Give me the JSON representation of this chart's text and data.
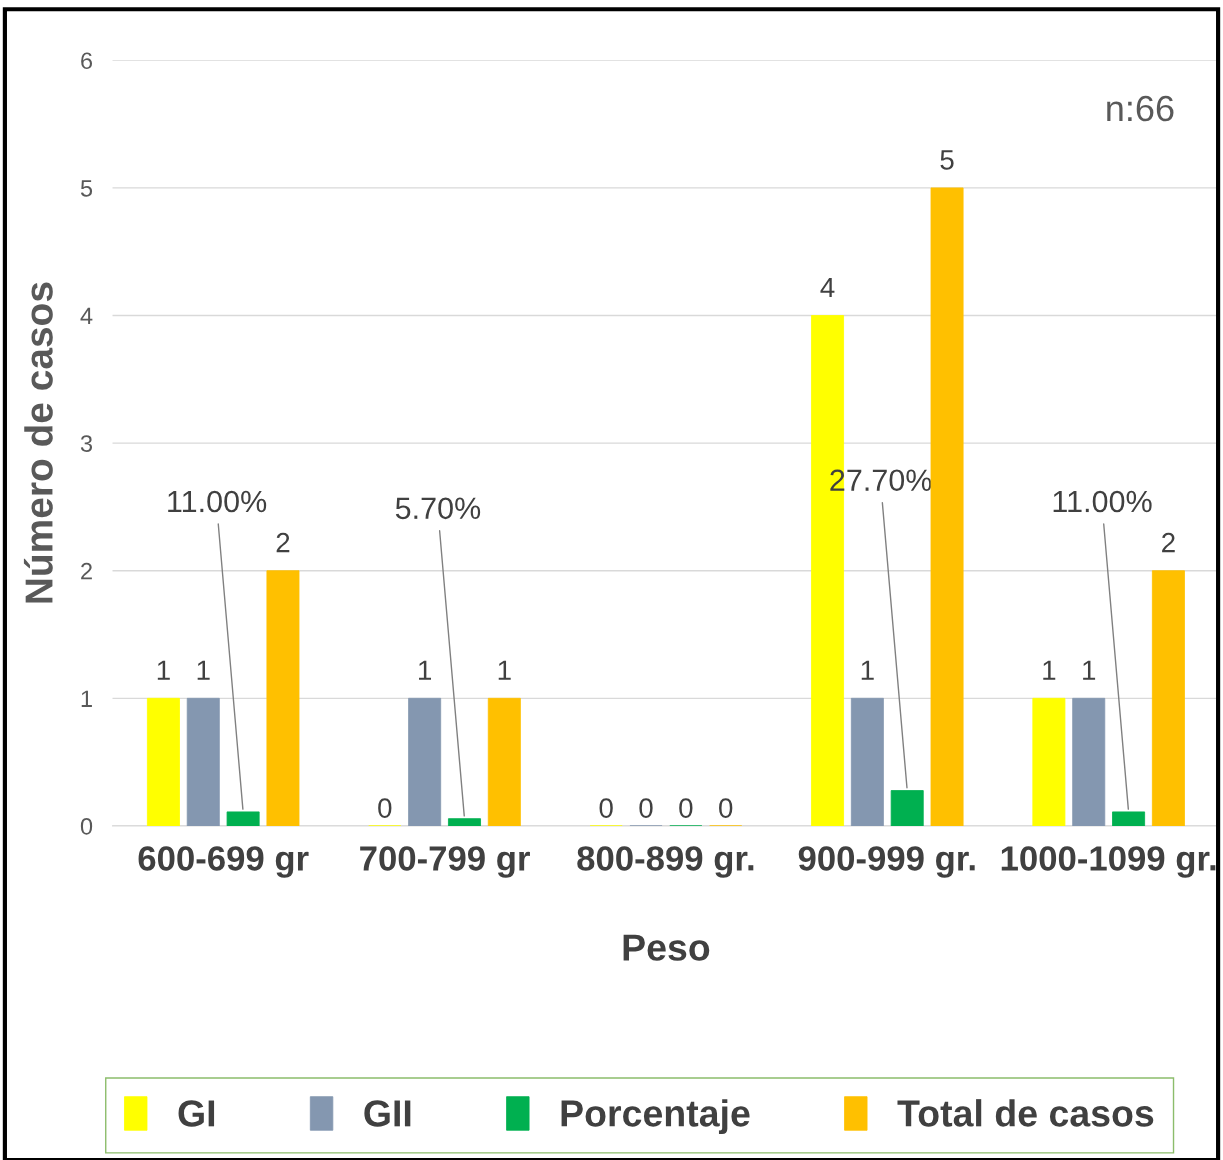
{
  "chart_data": {
    "type": "bar",
    "xlabel": "Peso",
    "ylabel": "Número de casos",
    "categories": [
      "600-699 gr",
      "700-799 gr",
      "800-899 gr.",
      "900-999 gr.",
      "1000-1099 gr."
    ],
    "series": [
      {
        "name": "GI",
        "color": "#ffff00",
        "values": [
          1,
          0,
          0,
          4,
          1
        ],
        "value_labels": [
          "1",
          "0",
          "0",
          "4",
          "1"
        ]
      },
      {
        "name": "GII",
        "color": "#8497b0",
        "values": [
          1,
          1,
          0,
          1,
          1
        ],
        "value_labels": [
          "1",
          "1",
          "0",
          "1",
          "1"
        ]
      },
      {
        "name": "Porcentaje",
        "color": "#00b050",
        "values": [
          0.11,
          0.057,
          0,
          0.277,
          0.11
        ],
        "value_labels": [
          "11.00%",
          "5.70%",
          "0",
          "27.70%",
          "11.00%"
        ]
      },
      {
        "name": "Total de casos",
        "color": "#ffc000",
        "values": [
          2,
          1,
          0,
          5,
          2
        ],
        "value_labels": [
          "2",
          "1",
          "0",
          "5",
          "2"
        ]
      }
    ],
    "ylim": [
      0,
      6
    ],
    "yticks": [
      0,
      1,
      2,
      3,
      4,
      5,
      6
    ],
    "grid": "y",
    "legend": "bottom",
    "annotations": [
      "n:66"
    ]
  }
}
